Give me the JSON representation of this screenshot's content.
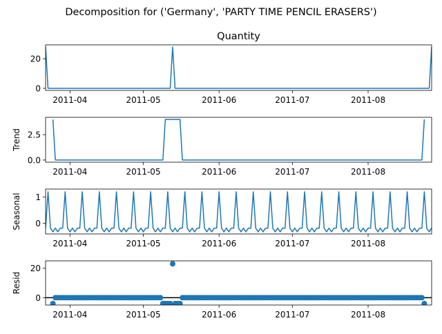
{
  "chart_data": [
    {
      "type": "line",
      "suptitle": "Decomposition for ('Germany', 'PARTY TIME PENCIL ERASERS')",
      "title": "Quantity",
      "ylabel": "",
      "x_start": "2011-03-22",
      "x_end": "2011-08-27",
      "ylim": [
        -1.4,
        29.4
      ],
      "yticks": [
        0,
        20
      ],
      "xtick_labels": [
        "2011-04",
        "2011-05",
        "2011-06",
        "2011-07",
        "2011-08"
      ],
      "color": "#1f77b4",
      "points": [
        [
          "2011-03-22",
          28
        ],
        [
          "2011-03-23",
          0
        ],
        [
          "2011-05-12",
          0
        ],
        [
          "2011-05-13",
          28
        ],
        [
          "2011-05-14",
          0
        ],
        [
          "2011-08-26",
          0
        ],
        [
          "2011-08-27",
          28
        ]
      ]
    },
    {
      "type": "line",
      "title": "",
      "ylabel": "Trend",
      "x_start": "2011-03-22",
      "x_end": "2011-08-27",
      "ylim": [
        -0.21,
        4.21
      ],
      "yticks": [
        0.0,
        2.5
      ],
      "ytick_labels": [
        "0.0",
        "2.5"
      ],
      "xtick_labels": [
        "2011-04",
        "2011-05",
        "2011-06",
        "2011-07",
        "2011-08"
      ],
      "color": "#1f77b4",
      "points": [
        [
          "2011-03-25",
          4.0
        ],
        [
          "2011-03-26",
          0
        ],
        [
          "2011-05-09",
          0
        ],
        [
          "2011-05-10",
          4.0
        ],
        [
          "2011-05-16",
          4.0
        ],
        [
          "2011-05-17",
          0
        ],
        [
          "2011-08-23",
          0
        ],
        [
          "2011-08-24",
          4.0
        ]
      ]
    },
    {
      "type": "line",
      "title": "",
      "ylabel": "Seasonal",
      "x_start": "2011-03-22",
      "x_end": "2011-08-27",
      "ylim": [
        -0.4,
        1.3
      ],
      "yticks": [
        0,
        1
      ],
      "xtick_labels": [
        "2011-04",
        "2011-05",
        "2011-06",
        "2011-07",
        "2011-08"
      ],
      "color": "#1f77b4",
      "weekly_pattern": [
        -0.18,
        1.2,
        -0.18,
        -0.32,
        -0.18,
        -0.32,
        -0.18
      ],
      "pattern_start": "2011-03-22"
    },
    {
      "type": "scatter",
      "title": "",
      "ylabel": "Resid",
      "x_start": "2011-03-22",
      "x_end": "2011-08-27",
      "ylim": [
        -5,
        25
      ],
      "yticks": [
        0,
        20
      ],
      "xtick_labels": [
        "2011-04",
        "2011-05",
        "2011-06",
        "2011-07",
        "2011-08"
      ],
      "color": "#1f77b4",
      "baseline": 0,
      "points": [
        [
          "2011-03-25",
          -4
        ],
        [
          "2011-05-09",
          -4
        ],
        [
          "2011-05-10",
          -4
        ],
        [
          "2011-05-11",
          -4
        ],
        [
          "2011-05-12",
          -4
        ],
        [
          "2011-05-13",
          23
        ],
        [
          "2011-05-14",
          -4
        ],
        [
          "2011-05-15",
          -4
        ],
        [
          "2011-05-16",
          -4
        ],
        [
          "2011-08-24",
          -4
        ]
      ],
      "zero_range": [
        "2011-03-26",
        "2011-08-23"
      ]
    }
  ]
}
